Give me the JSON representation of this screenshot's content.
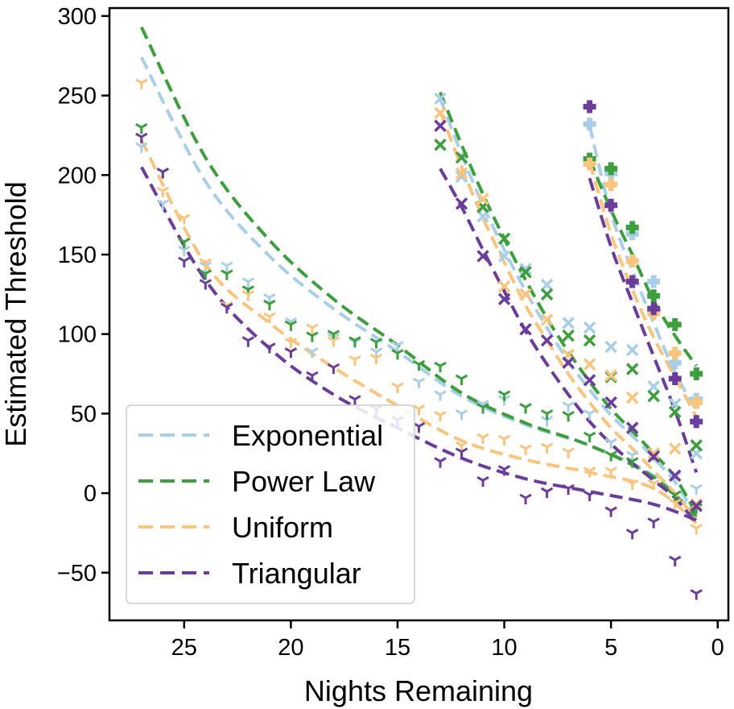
{
  "chart_data": {
    "type": "scatter",
    "xlabel": "Nights Remaining",
    "ylabel": "Estimated Threshold",
    "xlim": [
      28.5,
      -0.5
    ],
    "ylim": [
      -80,
      305
    ],
    "x_ticks": [
      25,
      20,
      15,
      10,
      5,
      0
    ],
    "y_ticks": [
      300,
      250,
      200,
      150,
      100,
      50,
      0,
      -50
    ],
    "x_tick_labels": [
      "25",
      "20",
      "15",
      "10",
      "5",
      "0"
    ],
    "y_tick_labels": [
      "300",
      "250",
      "200",
      "150",
      "100",
      "50",
      "0",
      "−50"
    ],
    "grid": false,
    "legend_position": "lower-left",
    "colors": {
      "Exponential": "#a9cfe6",
      "Power Law": "#3d9e3d",
      "Uniform": "#f9c47e",
      "Triangular": "#6a3d9a"
    },
    "marker_styles": [
      "tri_down",
      "x",
      "plus_filled"
    ],
    "legend": [
      "Exponential",
      "Power Law",
      "Uniform",
      "Triangular"
    ],
    "series": [
      {
        "name": "Exponential",
        "fit_curves": [
          {
            "x": [
              27,
              24,
              21,
              18,
              15,
              12,
              9,
              6,
              3,
              1
            ],
            "y": [
              274,
              196,
              149,
              116,
              89,
              61,
              43,
              30,
              11,
              -14
            ]
          },
          {
            "x": [
              13,
              12,
              11,
              10,
              9,
              8,
              7,
              6,
              5,
              4,
              3,
              2,
              1
            ],
            "y": [
              248,
              213,
              181,
              153,
              127,
              104,
              83,
              65,
              49,
              36,
              22,
              7,
              -15
            ]
          },
          {
            "x": [
              6,
              5,
              4,
              3,
              2,
              1
            ],
            "y": [
              231,
              176,
              140,
              107,
              76,
              52
            ]
          }
        ],
        "points_tri": {
          "x": [
            27,
            26,
            25,
            24,
            23,
            22,
            21,
            20,
            19,
            18,
            17,
            16,
            15,
            14,
            13,
            12,
            11,
            10,
            9,
            8,
            7,
            6,
            5,
            4,
            3,
            2,
            1
          ],
          "y": [
            218,
            182,
            153,
            143,
            143,
            133,
            123,
            108,
            89,
            98,
            95,
            89,
            93,
            70,
            62,
            50,
            56,
            59,
            54,
            46,
            55,
            50,
            32,
            24,
            24,
            11,
            3
          ]
        },
        "points_x": {
          "x": [
            13,
            12,
            11,
            10,
            9,
            8,
            7,
            6,
            5,
            4,
            3,
            2,
            1
          ],
          "y": [
            248,
            199,
            174,
            149,
            141,
            131,
            107,
            104,
            92,
            90,
            67,
            56,
            25
          ]
        },
        "points_plus": {
          "x": [
            6,
            5,
            4,
            3,
            2,
            1
          ],
          "y": [
            232,
            201,
            163,
            133,
            82,
            59
          ]
        }
      },
      {
        "name": "Power Law",
        "fit_curves": [
          {
            "x": [
              27,
              24,
              21,
              18,
              15,
              12,
              9,
              6,
              3,
              1
            ],
            "y": [
              293,
              211,
              159,
              122,
              93,
              63,
              44,
              30,
              10,
              -15
            ]
          },
          {
            "x": [
              13,
              12,
              11,
              10,
              9,
              8,
              7,
              6,
              5,
              4,
              3,
              2,
              1
            ],
            "y": [
              252,
              219,
              188,
              160,
              134,
              110,
              89,
              70,
              53,
              39,
              25,
              10,
              -13
            ]
          },
          {
            "x": [
              6,
              5,
              4,
              3,
              2,
              1
            ],
            "y": [
              210,
              178,
              150,
              121,
              99,
              80
            ]
          }
        ],
        "points_tri": {
          "x": [
            27,
            26,
            25,
            24,
            23,
            22,
            21,
            20,
            19,
            18,
            17,
            16,
            15,
            14,
            13,
            12,
            11,
            10,
            9,
            8,
            7,
            6,
            5,
            4,
            3,
            2,
            1
          ],
          "y": [
            230,
            202,
            158,
            138,
            138,
            128,
            119,
            106,
            99,
            100,
            96,
            95,
            88,
            81,
            80,
            72,
            54,
            62,
            54,
            50,
            49,
            36,
            24,
            20,
            25,
            -1,
            -9
          ]
        },
        "points_x": {
          "x": [
            13,
            12,
            11,
            10,
            9,
            8,
            7,
            6,
            5,
            4,
            3,
            2,
            1
          ],
          "y": [
            219,
            211,
            180,
            160,
            139,
            125,
            99,
            96,
            73,
            78,
            61,
            51,
            30
          ]
        },
        "points_plus": {
          "x": [
            6,
            5,
            4,
            3,
            2,
            1
          ],
          "y": [
            210,
            204,
            167,
            124,
            106,
            75
          ]
        }
      },
      {
        "name": "Uniform",
        "fit_curves": [
          {
            "x": [
              27,
              24,
              21,
              18,
              15,
              12,
              9,
              6,
              3,
              1
            ],
            "y": [
              222,
              144,
              107,
              79,
              55,
              33,
              21,
              13,
              3,
              -19
            ]
          },
          {
            "x": [
              13,
              12,
              11,
              10,
              9,
              8,
              7,
              6,
              5,
              4,
              3,
              2,
              1
            ],
            "y": [
              240,
              205,
              173,
              145,
              118,
              96,
              75,
              57,
              41,
              28,
              14,
              0,
              -17
            ]
          },
          {
            "x": [
              6,
              5,
              4,
              3,
              2,
              1
            ],
            "y": [
              208,
              163,
              128,
              98,
              73,
              48
            ]
          }
        ],
        "points_tri": {
          "x": [
            27,
            26,
            25,
            24,
            23,
            22,
            21,
            20,
            19,
            18,
            17,
            16,
            15,
            14,
            13,
            12,
            11,
            10,
            9,
            8,
            7,
            6,
            5,
            4,
            3,
            2,
            1
          ],
          "y": [
            258,
            190,
            173,
            145,
            118,
            125,
            111,
            95,
            104,
            96,
            84,
            85,
            67,
            53,
            49,
            30,
            35,
            34,
            28,
            29,
            26,
            14,
            14,
            6,
            6,
            -6,
            -22
          ]
        },
        "points_x": {
          "x": [
            13,
            12,
            11,
            10,
            9,
            8,
            7,
            6,
            5,
            4,
            3,
            2,
            1
          ],
          "y": [
            239,
            201,
            185,
            130,
            125,
            109,
            87,
            81,
            74,
            60,
            25,
            28,
            -7
          ]
        },
        "points_plus": {
          "x": [
            6,
            5,
            4,
            3,
            2,
            1
          ],
          "y": [
            207,
            194,
            146,
            113,
            88,
            57
          ]
        }
      },
      {
        "name": "Triangular",
        "fit_curves": [
          {
            "x": [
              27,
              24,
              21,
              18,
              15,
              12,
              9,
              6,
              3,
              1
            ],
            "y": [
              205,
              134,
              91,
              62,
              41,
              22,
              9,
              1,
              -7,
              -17
            ]
          },
          {
            "x": [
              13,
              12,
              11,
              10,
              9,
              8,
              7,
              6,
              5,
              4,
              3,
              2,
              1
            ],
            "y": [
              204,
              180,
              153,
              127,
              102,
              81,
              62,
              45,
              31,
              19,
              8,
              -3,
              -19
            ]
          },
          {
            "x": [
              6,
              5,
              4,
              3,
              2,
              1
            ],
            "y": [
              198,
              155,
              120,
              86,
              52,
              13
            ]
          }
        ],
        "points_tri": {
          "x": [
            27,
            26,
            25,
            24,
            23,
            22,
            21,
            20,
            19,
            18,
            17,
            16,
            15,
            14,
            13,
            12,
            11,
            10,
            9,
            8,
            7,
            6,
            5,
            4,
            3,
            2,
            1
          ],
          "y": [
            224,
            202,
            146,
            132,
            117,
            96,
            92,
            89,
            74,
            79,
            59,
            53,
            46,
            42,
            20,
            26,
            8,
            15,
            -3,
            1,
            3,
            -1,
            -11,
            -25,
            -18,
            -42,
            -63
          ]
        },
        "points_x": {
          "x": [
            13,
            12,
            11,
            10,
            9,
            8,
            7,
            6,
            5,
            4,
            3,
            2,
            1
          ],
          "y": [
            231,
            182,
            149,
            122,
            103,
            96,
            82,
            71,
            57,
            41,
            23,
            11,
            -8
          ]
        },
        "points_plus": {
          "x": [
            6,
            5,
            4,
            3,
            2,
            1
          ],
          "y": [
            243,
            181,
            133,
            116,
            72,
            45
          ]
        }
      }
    ]
  }
}
